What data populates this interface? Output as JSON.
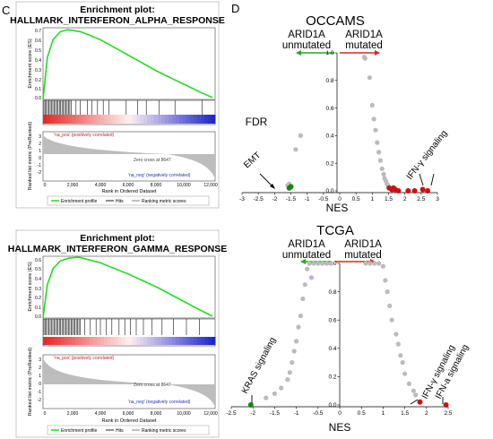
{
  "panels": {
    "left_label": "C",
    "right_label": "D"
  },
  "colors": {
    "es_curve": "#22dd22",
    "up": "#cc1111",
    "down": "#118811",
    "grey": "#bbbbbb",
    "arrow_green": "#22aa22",
    "arrow_red": "#dd2222"
  },
  "chart_data": [
    {
      "type": "line",
      "id": "gsea_alpha",
      "title_line1": "Enrichment plot:",
      "title_line2": "HALLMARK_INTERFERON_ALPHA_RESPONSE",
      "ylabel_top": "Enrichment score (ES)",
      "ylabel_bottom": "Ranked list metric (PreRanked)",
      "xlabel": "Rank in Ordered Dataset",
      "x_ticks": [
        "0",
        "2,000",
        "4,000",
        "6,000",
        "8,000",
        "10,000",
        "12,000"
      ],
      "es_ticks": [
        "0.7",
        "0.6",
        "0.5",
        "0.4",
        "0.3",
        "0.2",
        "0.1",
        "0.0"
      ],
      "metric_ticks": [
        "3",
        "2",
        "1",
        "0",
        "-1",
        "-2"
      ],
      "ylim": [
        0,
        0.72
      ],
      "x": [
        0,
        300,
        700,
        1200,
        1700,
        2200,
        2600,
        3000,
        4000,
        5000,
        6000,
        7000,
        8000,
        9000,
        10000,
        11000,
        11800
      ],
      "y": [
        0.0,
        0.42,
        0.6,
        0.68,
        0.7,
        0.69,
        0.68,
        0.66,
        0.6,
        0.52,
        0.44,
        0.36,
        0.28,
        0.21,
        0.14,
        0.07,
        0.02
      ],
      "hits_dense_to": 2000,
      "hits_sparse": [
        2300,
        2600,
        3100,
        3400,
        3800,
        4200,
        4600,
        5800,
        6600,
        7200,
        8100,
        9200,
        11100
      ],
      "pos_label": "'na_pos' (positively correlated)",
      "neg_label": "'na_neg' (negatively correlated)",
      "zero_cross": "Zero cross at 8647",
      "legend": [
        "Enrichment profile",
        "Hits",
        "Ranking metric scores"
      ]
    },
    {
      "type": "line",
      "id": "gsea_gamma",
      "title_line1": "Enrichment plot:",
      "title_line2": "HALLMARK_INTERFERON_GAMMA_RESPONSE",
      "ylabel_top": "Enrichment score (ES)",
      "ylabel_bottom": "Ranked list metric (PreRanked)",
      "xlabel": "Rank in Ordered Dataset",
      "x_ticks": [
        "0",
        "2,000",
        "4,000",
        "6,000",
        "8,000",
        "10,000",
        "12,000"
      ],
      "es_ticks": [
        "0.6",
        "0.5",
        "0.4",
        "0.3",
        "0.2",
        "0.1",
        "0.0"
      ],
      "metric_ticks": [
        "3",
        "2",
        "1",
        "0",
        "-1",
        "-2"
      ],
      "ylim": [
        0,
        0.65
      ],
      "x": [
        0,
        300,
        700,
        1200,
        1800,
        2500,
        3000,
        4000,
        5000,
        6000,
        7000,
        8000,
        9000,
        10000,
        11000,
        11800
      ],
      "y": [
        0.0,
        0.35,
        0.52,
        0.6,
        0.63,
        0.64,
        0.62,
        0.58,
        0.52,
        0.46,
        0.39,
        0.32,
        0.24,
        0.16,
        0.08,
        0.02
      ],
      "hits_dense_to": 2600,
      "hits_sparse": [
        2900,
        3300,
        3700,
        4000,
        4400,
        4800,
        5300,
        5700,
        6100,
        6500,
        7000,
        7600,
        8300,
        9100,
        10000,
        10900
      ],
      "pos_label": "'na_pos' (positively correlated)",
      "neg_label": "'na_neg' (negatively correlated)",
      "zero_cross": "Zero cross at 8647",
      "legend": [
        "Enrichment profile",
        "Hits",
        "Ranking metric scores"
      ]
    },
    {
      "type": "scatter",
      "id": "occams",
      "title": "OCCAMS",
      "left_group": [
        "ARID1A",
        "unmutated"
      ],
      "right_group": [
        "ARID1A",
        "mutated"
      ],
      "xlabel": "NES",
      "ylabel": "FDR",
      "xlim": [
        -3,
        3
      ],
      "ylim": [
        0,
        1
      ],
      "x_ticks": [
        "-3",
        "-2.5",
        "-2",
        "-1.5",
        "-1",
        "-0.5",
        "0",
        "0.5",
        "1",
        "1.5",
        "2",
        "2.5",
        "3"
      ],
      "y_ticks": [
        "0.0",
        "0.2",
        "0.4",
        "0.6",
        "0.8",
        "1.0"
      ],
      "grey_points": [
        [
          0.75,
          0.97
        ],
        [
          0.78,
          0.96
        ],
        [
          0.92,
          0.82
        ],
        [
          1.0,
          0.62
        ],
        [
          1.05,
          0.52
        ],
        [
          1.1,
          0.44
        ],
        [
          1.15,
          0.35
        ],
        [
          1.2,
          0.28
        ],
        [
          1.25,
          0.22
        ],
        [
          1.3,
          0.16
        ],
        [
          1.35,
          0.12
        ],
        [
          1.38,
          0.09
        ],
        [
          1.42,
          0.07
        ],
        [
          1.45,
          0.05
        ],
        [
          1.48,
          0.04
        ],
        [
          1.5,
          0.03
        ],
        [
          -1.2,
          0.4
        ],
        [
          -1.35,
          0.3
        ],
        [
          -1.55,
          0.05
        ],
        [
          -1.6,
          0.04
        ]
      ],
      "up_points": [
        [
          1.52,
          0.02
        ],
        [
          1.6,
          0.01
        ],
        [
          1.7,
          0.01
        ],
        [
          1.8,
          0.0
        ],
        [
          2.1,
          0.0
        ],
        [
          2.3,
          0.0
        ],
        [
          2.55,
          0.01
        ],
        [
          2.7,
          0.0
        ],
        [
          1.65,
          0.02
        ]
      ],
      "down_points": [
        [
          -1.5,
          0.03
        ],
        [
          -1.55,
          0.02
        ]
      ],
      "annotations": [
        "EMT",
        "IFN-γ signaling"
      ]
    },
    {
      "type": "scatter",
      "id": "tcga",
      "title": "TCGA",
      "left_group": [
        "ARID1A",
        "unmutated"
      ],
      "right_group": [
        "ARID1A",
        "mutated"
      ],
      "xlabel": "NES",
      "ylabel": "",
      "xlim": [
        -2.5,
        2.5
      ],
      "ylim": [
        0,
        1
      ],
      "x_ticks": [
        "-2.5",
        "-2",
        "-1.5",
        "-1",
        "-0.5",
        "0",
        "0.5",
        "1",
        "1.5",
        "2",
        "2.5"
      ],
      "y_ticks": [
        "0.0",
        "0.2",
        "0.4",
        "0.6",
        "0.8",
        "1.0"
      ],
      "grey_points": [
        [
          -0.2,
          1.0
        ],
        [
          -0.3,
          1.0
        ],
        [
          -0.4,
          1.0
        ],
        [
          -0.5,
          1.0
        ],
        [
          -0.6,
          1.0
        ],
        [
          -0.7,
          1.0
        ],
        [
          0.6,
          1.0
        ],
        [
          0.7,
          1.0
        ],
        [
          0.8,
          1.0
        ],
        [
          0.9,
          1.0
        ],
        [
          1.0,
          0.98
        ],
        [
          1.05,
          0.88
        ],
        [
          1.1,
          0.8
        ],
        [
          1.15,
          0.7
        ],
        [
          1.2,
          0.6
        ],
        [
          1.3,
          0.5
        ],
        [
          1.35,
          0.43
        ],
        [
          1.4,
          0.35
        ],
        [
          1.45,
          0.3
        ],
        [
          1.5,
          0.22
        ],
        [
          1.6,
          0.15
        ],
        [
          1.7,
          0.1
        ],
        [
          1.75,
          0.07
        ],
        [
          -0.75,
          0.96
        ],
        [
          -0.8,
          0.85
        ],
        [
          -0.85,
          0.75
        ],
        [
          -0.9,
          0.63
        ],
        [
          -0.95,
          0.55
        ],
        [
          -1.0,
          0.45
        ],
        [
          -1.05,
          0.38
        ],
        [
          -1.1,
          0.3
        ],
        [
          -1.15,
          0.23
        ],
        [
          -1.2,
          0.18
        ],
        [
          -1.35,
          0.12
        ],
        [
          -1.5,
          0.08
        ],
        [
          -1.7,
          0.05
        ]
      ],
      "lilac_points": [
        [
          -0.65,
          0.9
        ]
      ],
      "up_points": [
        [
          1.85,
          0.02
        ],
        [
          2.45,
          0.0
        ]
      ],
      "down_points": [
        [
          -2.05,
          0.0
        ]
      ],
      "annotations": [
        "KRAS signaling",
        "IFN-γ signaling",
        "IFN-a  signaling"
      ]
    }
  ]
}
